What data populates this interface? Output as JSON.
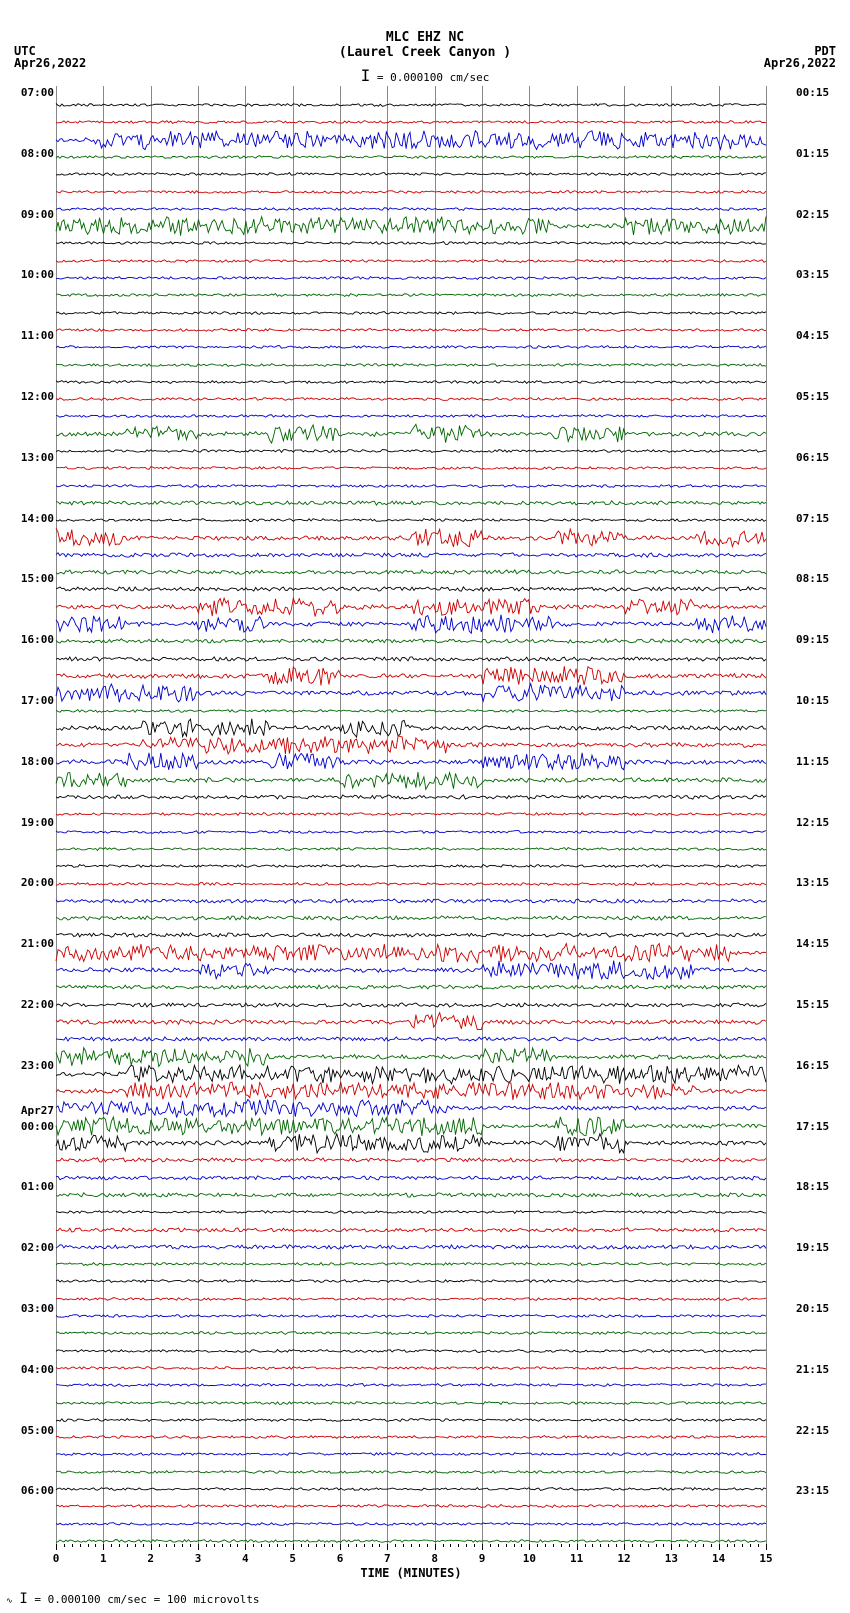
{
  "header": {
    "station": "MLC EHZ NC",
    "location": "(Laurel Creek Canyon )",
    "scale_text": "= 0.000100 cm/sec",
    "tz_left": "UTC",
    "date_left": "Apr26,2022",
    "tz_right": "PDT",
    "date_right": "Apr26,2022"
  },
  "plot": {
    "x_minutes": [
      0,
      1,
      2,
      3,
      4,
      5,
      6,
      7,
      8,
      9,
      10,
      11,
      12,
      13,
      14,
      15
    ],
    "x_title": "TIME (MINUTES)",
    "grid_color": "#888888",
    "background": "#ffffff",
    "trace_colors": [
      "#000000",
      "#cc0000",
      "#0000cc",
      "#006600"
    ],
    "num_traces": 84,
    "trace_spacing": 17.3,
    "left_hour_labels": [
      {
        "text": "07:00",
        "row": 0
      },
      {
        "text": "08:00",
        "row": 4
      },
      {
        "text": "09:00",
        "row": 8
      },
      {
        "text": "10:00",
        "row": 12
      },
      {
        "text": "11:00",
        "row": 16
      },
      {
        "text": "12:00",
        "row": 20
      },
      {
        "text": "13:00",
        "row": 24
      },
      {
        "text": "14:00",
        "row": 28
      },
      {
        "text": "15:00",
        "row": 32
      },
      {
        "text": "16:00",
        "row": 36
      },
      {
        "text": "17:00",
        "row": 40
      },
      {
        "text": "18:00",
        "row": 44
      },
      {
        "text": "19:00",
        "row": 48
      },
      {
        "text": "20:00",
        "row": 52
      },
      {
        "text": "21:00",
        "row": 56
      },
      {
        "text": "22:00",
        "row": 60
      },
      {
        "text": "23:00",
        "row": 64
      },
      {
        "text": "Apr27",
        "row": 67
      },
      {
        "text": "00:00",
        "row": 68
      },
      {
        "text": "01:00",
        "row": 72
      },
      {
        "text": "02:00",
        "row": 76
      },
      {
        "text": "03:00",
        "row": 80
      },
      {
        "text": "04:00",
        "row": 84
      },
      {
        "text": "05:00",
        "row": 88
      },
      {
        "text": "06:00",
        "row": 92
      }
    ],
    "right_hour_labels": [
      {
        "text": "00:15",
        "row": 0
      },
      {
        "text": "01:15",
        "row": 4
      },
      {
        "text": "02:15",
        "row": 8
      },
      {
        "text": "03:15",
        "row": 12
      },
      {
        "text": "04:15",
        "row": 16
      },
      {
        "text": "05:15",
        "row": 20
      },
      {
        "text": "06:15",
        "row": 24
      },
      {
        "text": "07:15",
        "row": 28
      },
      {
        "text": "08:15",
        "row": 32
      },
      {
        "text": "09:15",
        "row": 36
      },
      {
        "text": "10:15",
        "row": 40
      },
      {
        "text": "11:15",
        "row": 44
      },
      {
        "text": "12:15",
        "row": 48
      },
      {
        "text": "13:15",
        "row": 52
      },
      {
        "text": "14:15",
        "row": 56
      },
      {
        "text": "15:15",
        "row": 60
      },
      {
        "text": "16:15",
        "row": 64
      },
      {
        "text": "17:15",
        "row": 68
      },
      {
        "text": "18:15",
        "row": 72
      },
      {
        "text": "19:15",
        "row": 76
      },
      {
        "text": "20:15",
        "row": 80
      },
      {
        "text": "21:15",
        "row": 84
      },
      {
        "text": "22:15",
        "row": 88
      },
      {
        "text": "23:15",
        "row": 92
      }
    ],
    "high_activity_rows": [
      2,
      7,
      19,
      25,
      29,
      30,
      33,
      34,
      36,
      37,
      38,
      39,
      49,
      50,
      53,
      55,
      56,
      57,
      58,
      59,
      60
    ],
    "medium_activity_rows": [
      23,
      26,
      27,
      28,
      31,
      32,
      40,
      46,
      47,
      48,
      51,
      52,
      54,
      61,
      62,
      63,
      65,
      66
    ]
  },
  "footer": {
    "text": "= 0.000100 cm/sec =    100 microvolts"
  }
}
